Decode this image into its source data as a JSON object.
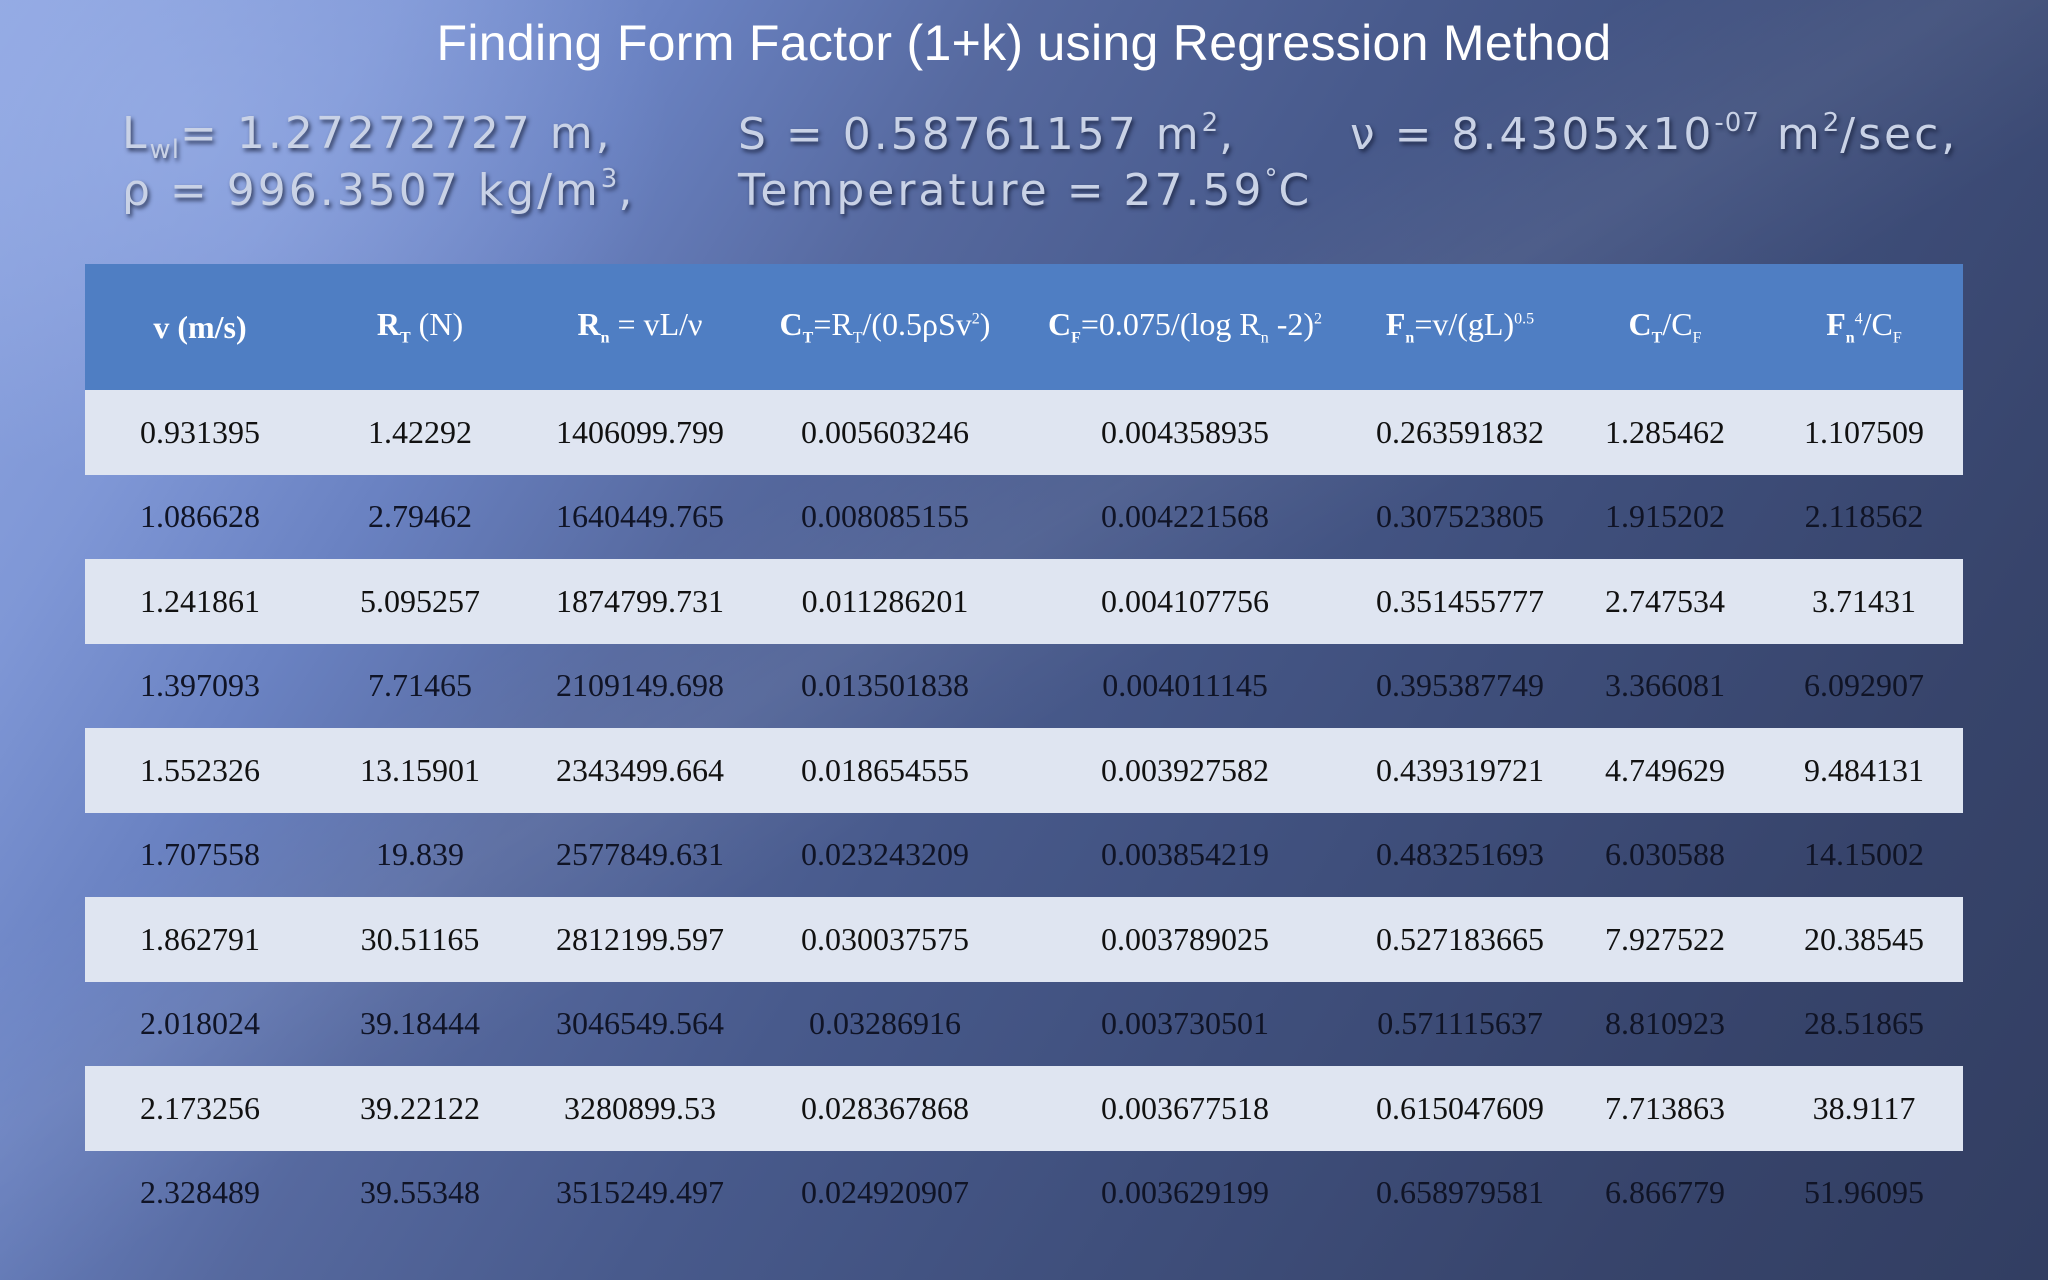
{
  "title": "Finding Form Factor (1+k) using Regression Method",
  "params": {
    "lwl": {
      "symbol": "L",
      "sub": "wl",
      "text": "= 1.27272727 m,"
    },
    "rho": {
      "text": "ρ = 996.3507 kg/m",
      "sup": "3",
      "tail": ","
    },
    "s": {
      "text": "S = 0.58761157 m",
      "sup": "2",
      "tail": ","
    },
    "temperature": {
      "text": "Temperature = 27.59",
      "deg": "°",
      "unit": "C"
    },
    "nu": {
      "text": "ν = 8.4305x10",
      "exp": "-07",
      "unit": " m",
      "unit_sup": "2",
      "tail": "/sec,"
    }
  },
  "table": {
    "headers": [
      {
        "html": "v (m/s)"
      },
      {
        "main": "R",
        "sub": "T",
        "rest": " (N)"
      },
      {
        "main": "R",
        "sub": "n",
        "rest": " = vL/ν"
      },
      {
        "main": "C",
        "sub": "T",
        "rest": "=R",
        "sub2": "T",
        "rest2": "/(0.5ρSv",
        "sup2": "2",
        "rest3": ")"
      },
      {
        "main": "C",
        "sub": "F",
        "rest": "=0.075/(log R",
        "sub2": "n",
        "rest2": " -2)",
        "sup2": "2",
        "rest3": ""
      },
      {
        "main": "F",
        "sub": "n",
        "rest": "=v/(gL)",
        "sup2": "0.5",
        "rest3": ""
      },
      {
        "main": "C",
        "sub": "T",
        "rest": "/C",
        "sub2": "F",
        "rest2": ""
      },
      {
        "main": "F",
        "sub": "n",
        "sup": "4",
        "rest": "/C",
        "sub2": "F",
        "rest2": ""
      }
    ],
    "rows": [
      [
        "0.931395",
        "1.42292",
        "1406099.799",
        "0.005603246",
        "0.004358935",
        "0.263591832",
        "1.285462",
        "1.107509"
      ],
      [
        "1.086628",
        "2.79462",
        "1640449.765",
        "0.008085155",
        "0.004221568",
        "0.307523805",
        "1.915202",
        "2.118562"
      ],
      [
        "1.241861",
        "5.095257",
        "1874799.731",
        "0.011286201",
        "0.004107756",
        "0.351455777",
        "2.747534",
        "3.71431"
      ],
      [
        "1.397093",
        "7.71465",
        "2109149.698",
        "0.013501838",
        "0.004011145",
        "0.395387749",
        "3.366081",
        "6.092907"
      ],
      [
        "1.552326",
        "13.15901",
        "2343499.664",
        "0.018654555",
        "0.003927582",
        "0.439319721",
        "4.749629",
        "9.484131"
      ],
      [
        "1.707558",
        "19.839",
        "2577849.631",
        "0.023243209",
        "0.003854219",
        "0.483251693",
        "6.030588",
        "14.15002"
      ],
      [
        "1.862791",
        "30.51165",
        "2812199.597",
        "0.030037575",
        "0.003789025",
        "0.527183665",
        "7.927522",
        "20.38545"
      ],
      [
        "2.018024",
        "39.18444",
        "3046549.564",
        "0.03286916",
        "0.003730501",
        "0.571115637",
        "8.810923",
        "28.51865"
      ],
      [
        "2.173256",
        "39.22122",
        "3280899.53",
        "0.028367868",
        "0.003677518",
        "0.615047609",
        "7.713863",
        "38.9117"
      ],
      [
        "2.328489",
        "39.55348",
        "3515249.497",
        "0.024920907",
        "0.003629199",
        "0.658979581",
        "6.866779",
        "51.96095"
      ]
    ]
  }
}
